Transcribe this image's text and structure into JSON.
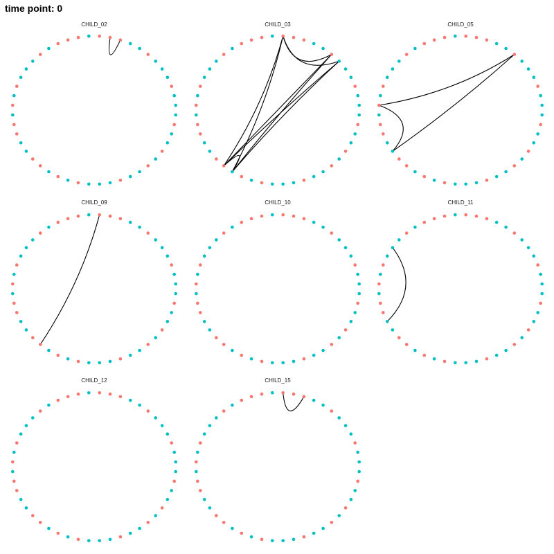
{
  "page": {
    "title": "time point: 0"
  },
  "colors": {
    "group_a": "#F8766D",
    "group_b": "#00BFC4",
    "edge": "#000000"
  },
  "chart_data": {
    "type": "network-circle-facets",
    "node_count": 48,
    "node_groups": [
      "a",
      "a",
      "a",
      "b",
      "b",
      "a",
      "b",
      "b",
      "b",
      "a",
      "b",
      "b",
      "b",
      "a",
      "b",
      "b",
      "a",
      "b",
      "a",
      "b",
      "b",
      "a",
      "b",
      "b",
      "b",
      "a",
      "b",
      "a",
      "b",
      "a",
      "a",
      "b",
      "b",
      "a",
      "a",
      "b",
      "a",
      "b",
      "a",
      "b",
      "b",
      "b",
      "a",
      "b",
      "a",
      "a",
      "a",
      "b"
    ],
    "panels": [
      {
        "label": "CHILD_02",
        "edges": [
          [
            1,
            2
          ]
        ]
      },
      {
        "label": "CHILD_03",
        "edges": [
          [
            0,
            5
          ],
          [
            0,
            28
          ],
          [
            0,
            29
          ],
          [
            5,
            28
          ],
          [
            5,
            29
          ],
          [
            6,
            28
          ],
          [
            6,
            29
          ],
          [
            6,
            0
          ],
          [
            28,
            29
          ]
        ]
      },
      {
        "label": "CHILD_05",
        "edges": [
          [
            5,
            36
          ],
          [
            5,
            31
          ],
          [
            36,
            31
          ]
        ]
      },
      {
        "label": "CHILD_09",
        "edges": [
          [
            0,
            29
          ]
        ]
      },
      {
        "label": "CHILD_10",
        "edges": []
      },
      {
        "label": "CHILD_11",
        "edges": [
          [
            40,
            32
          ]
        ]
      },
      {
        "label": "CHILD_12",
        "edges": []
      },
      {
        "label": "CHILD_15",
        "edges": [
          [
            0,
            2
          ]
        ]
      }
    ]
  }
}
